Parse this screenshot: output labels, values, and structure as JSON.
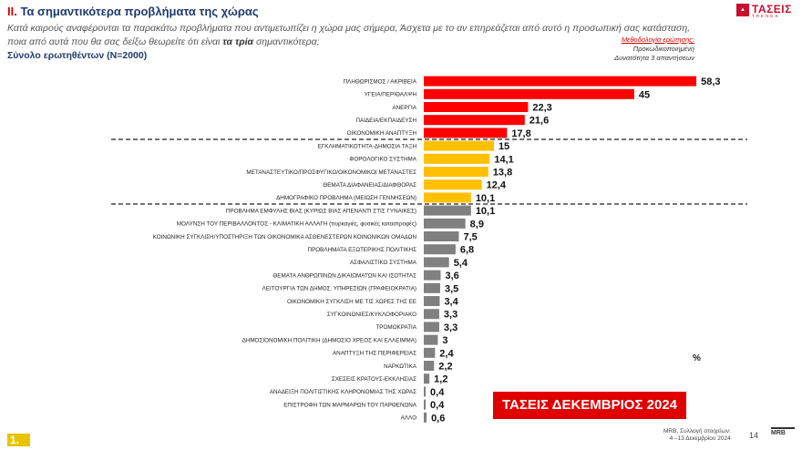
{
  "header": {
    "title_number": "II.",
    "title": "Τα σημαντικότερα προβλήματα της χώρας",
    "intro_part1": "Κατά καιρούς αναφέρονται τα παρακάτω προβλήματα που αντιμετωπίζει η χώρα μας σήμερα, Άσχετα με το αν επηρεάζεται από αυτό η προσωπική σας κατάσταση, ποια από αυτά που θα σας δείξω θεωρείτε ότι είναι ",
    "intro_bold": "τα τρία",
    "intro_part2": " σημαντικότερα;",
    "base": "Σύνολο ερωτηθέντων (N=2000)",
    "method_title": "Μεθοδολογία ερώτησης:",
    "method_line1": "Προκωδικοποιημένη",
    "method_line2": "Δυνατότητα 3 απαντήσεων"
  },
  "logo": {
    "word": "ΤΑΣΕΙΣ",
    "sub": "TRENDS"
  },
  "colors": {
    "top_group": "#ff0000",
    "mid_group": "#ffc000",
    "low_group": "#808080",
    "banner": "#e00000",
    "title": "#1f3a6e"
  },
  "chart_data": {
    "type": "bar",
    "orientation": "horizontal",
    "unit": "%",
    "categories": [
      "ΠΛΗΘΩΡΙΣΜΟΣ / ΑΚΡΙΒΕΙΑ",
      "ΥΓΕΙΑ/ΠΕΡΙΘΑΛΨΗ",
      "ΑΝΕΡΓΙΑ",
      "ΠΑΙΔΕΙΑ/ΕΚΠΑΙΔΕΥΣΗ",
      "ΟΙΚΟΝΟΜΙΚΗ ΑΝΑΠΤΥΞΗ",
      "ΕΓΚΛΗΜΑΤΙΚΟΤΗΤΑ-ΔΗΜΟΣΙΑ ΤΑΞΗ",
      "ΦΟΡΟΛΟΓΙΚΟ ΣΥΣΤΗΜΑ",
      "ΜΕΤΑΝΑΣΤΕΥΤΙΚΟ/ΠΡΟΣΦΥΓΙΚΟ/ΟΙΚΟΝΟΜΙΚΟΙ ΜΕΤΑΝΑΣΤΕΣ",
      "ΘΕΜΑΤΑ ΔΙΑΦΑΝΕΙΑΣ/ΔΙΑΦΘΟΡΑΣ",
      "ΔΗΜΟΓΡΑΦΙΚΟ ΠΡΟΒΛΗΜΑ (ΜΕΙΩΣΗ ΓΕΝΝΗΣΕΩΝ)",
      "ΠΡΟΒΛΗΜΑ ΕΜΦΥΛΗΣ ΒΙΑΣ (ΚΥΡΙΩΣ ΒΙΑΣ ΑΠΕΝΑΝΤΙ ΣΤΙΣ ΓΥΝΑΙΚΕΣ)",
      "ΜΟΛΥΝΣΗ ΤΟΥ ΠΕΡΙΒΑΛΛΟΝΤΟΣ - ΚΛΙΜΑΤΙΚΗ ΑΛΛΑΓΗ (πυρκαγιές, φυσικές καταστροφές)",
      "ΚΟΙΝΩΝΙΚΗ ΣΥΓΚΛΙΣΗ/ΥΠΟΣΤΗΡΙΞΗ ΤΩΝ ΟΙΚΟΝΟΜΙΚΑ ΑΣΘΕΝΕΣΤΕΡΩΝ ΚΟΙΝΩΝΙΚΩΝ ΟΜΑΔΩΝ",
      "ΠΡΟΒΛΗΜΑΤΑ ΕΞΩΤΕΡΙΚΗΣ ΠΟΛΙΤΙΚΗΣ",
      "ΑΣΦΑΛΙΣΤΙΚΟ ΣΥΣΤΗΜΑ",
      "ΘΕΜΑΤΑ ΑΝΘΡΩΠΙΝΩΝ ΔΙΚΑΙΩΜΑΤΩΝ ΚΑΙ ΙΣΟΤΗΤΑΣ",
      "ΛΕΙΤΟΥΡΓΙΑ ΤΩΝ ΔΗΜΟΣ. ΥΠΗΡΕΣΙΩΝ (ΓΡΑΦΕΙΟΚΡΑΤΙΑ)",
      "ΟΙΚΟΝΟΜΙΚΗ ΣΥΓΚΛΙΣΗ ΜΕ ΤΙΣ ΧΩΡΕΣ ΤΗΣ ΕΕ",
      "ΣΥΓΚΟΙΝΩΝΙΕΣ/ΚΥΚΛΟΦΟΡΙΑΚΟ",
      "ΤΡΟΜΟΚΡΑΤΙΑ",
      "ΔΗΜΟΣΙΟΝΟΜΙΚΗ ΠΟΛΙΤΙΚΗ (ΔΗΜΟΣΙΟ ΧΡΕΟΣ ΚΑΙ ΕΛΛΕΙΜΜΑ)",
      "ΑΝΑΠΤΥΞΗ ΤΗΣ ΠΕΡΙΦΕΡΕΙΑΣ",
      "ΝΑΡΚΩΤΙΚΑ",
      "ΣΧΕΣΕΙΣ ΚΡΑΤΟΥΣ-ΕΚΚΛΗΣΙΑΣ",
      "ΑΝΑΔΕΙΞΗ ΠΟΛΙΤΙΣΤΙΚΗΣ ΚΛΗΡΟΝΟΜΙΑΣ ΤΗΣ ΧΩΡΑΣ",
      "ΕΠΙΣΤΡΟΦΗ ΤΩΝ ΜΑΡΜΑΡΩΝ ΤΟΥ ΠΑΡΘΕΝΩΝΑ",
      "ΑΛΛΟ"
    ],
    "values": [
      58.3,
      45,
      22.3,
      21.6,
      17.8,
      15,
      14.1,
      13.8,
      12.4,
      10.1,
      10.1,
      8.9,
      7.5,
      6.8,
      5.4,
      3.6,
      3.5,
      3.4,
      3.3,
      3.3,
      3,
      2.4,
      2.2,
      1.2,
      0.4,
      0.4,
      0.6
    ],
    "value_labels": [
      "58,3",
      "45",
      "22,3",
      "21,6",
      "17,8",
      "15",
      "14,1",
      "13,8",
      "12,4",
      "10,1",
      "10,1",
      "8,9",
      "7,5",
      "6,8",
      "5,4",
      "3,6",
      "3,5",
      "3,4",
      "3,3",
      "3,3",
      "3",
      "2,4",
      "2,2",
      "1,2",
      "0,4",
      "0,4",
      "0,6"
    ],
    "groups": [
      {
        "color": "#ff0000",
        "count": 5
      },
      {
        "color": "#ffc000",
        "count": 5
      },
      {
        "color": "#808080",
        "count": 17
      }
    ],
    "unit_label": "%",
    "xlim": [
      0,
      60
    ],
    "grid": false,
    "legend": "none"
  },
  "banner": "ΤΑΣΕΙΣ ΔΕΚΕΜΒΡΙΟΣ 2024",
  "footer": {
    "page_mark": "1.",
    "source_line1": "MRB, Συλλογή στοιχείων:",
    "source_line2": "4 –13 Δεκεμβρίου 2024",
    "page_number": "14",
    "brand": "MRB"
  }
}
